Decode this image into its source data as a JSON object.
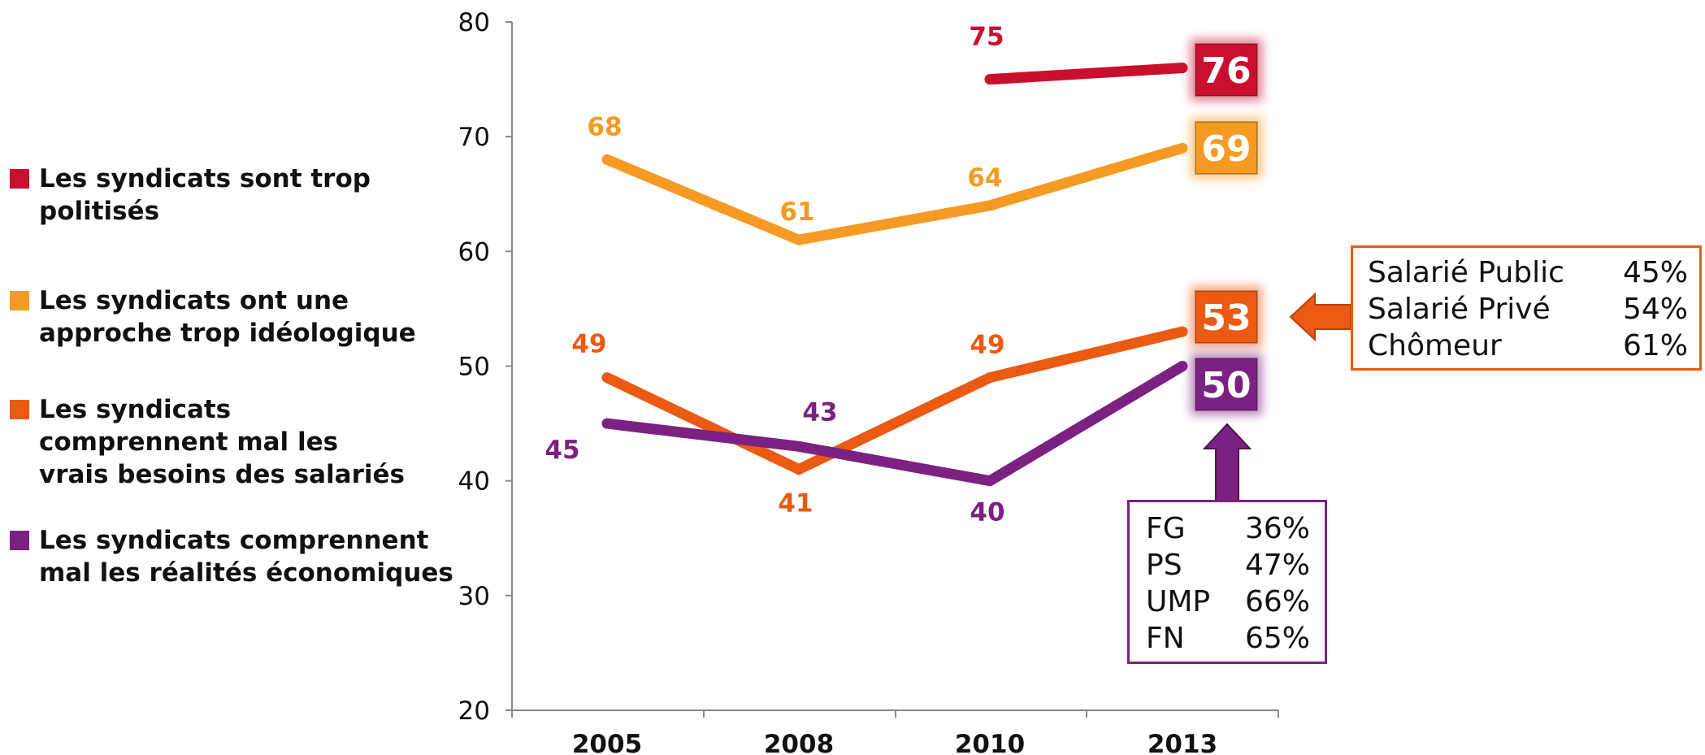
{
  "colors": {
    "politises": "#c8102e",
    "ideologique": "#f59a23",
    "besoins": "#eb5a12",
    "realites": "#7b2181",
    "axis": "#888888"
  },
  "chart_data": {
    "type": "line",
    "x": [
      "2005",
      "2008",
      "2010",
      "2013"
    ],
    "ylim": [
      20,
      80
    ],
    "yticks": [
      "20",
      "30",
      "40",
      "50",
      "60",
      "70",
      "80"
    ],
    "grid": false,
    "legend_position": "left",
    "series": [
      {
        "key": "politises",
        "name": "Les syndicats sont trop\npolitisés",
        "values": [
          null,
          null,
          75,
          76
        ]
      },
      {
        "key": "ideologique",
        "name": "Les syndicats ont une\napproche trop idéologique",
        "values": [
          68,
          61,
          64,
          69
        ]
      },
      {
        "key": "besoins",
        "name": "Les syndicats\ncomprennent mal les\nvrais besoins des salariés",
        "values": [
          49,
          41,
          49,
          53
        ]
      },
      {
        "key": "realites",
        "name": "Les syndicats comprennent\nmal les réalités économiques",
        "values": [
          45,
          43,
          40,
          50
        ]
      }
    ]
  },
  "callouts": {
    "status": {
      "rows": [
        {
          "label": "Salarié Public",
          "value": "45%"
        },
        {
          "label": "Salarié Privé",
          "value": "54%"
        },
        {
          "label": "Chômeur",
          "value": "61%"
        }
      ]
    },
    "party": {
      "rows": [
        {
          "label": "FG",
          "value": "36%"
        },
        {
          "label": "PS",
          "value": "47%"
        },
        {
          "label": "UMP",
          "value": "66%"
        },
        {
          "label": "FN",
          "value": "65%"
        }
      ]
    }
  }
}
